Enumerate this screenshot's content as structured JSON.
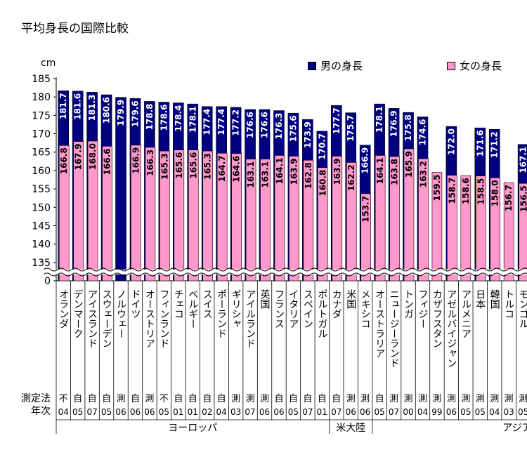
{
  "chart_data": {
    "type": "bar",
    "title": "平均身長の国際比較",
    "ylabel": "cm",
    "ylim": [
      130,
      185
    ],
    "yticks": [
      135,
      140,
      145,
      150,
      155,
      160,
      165,
      170,
      175,
      180,
      185
    ],
    "axis_break": true,
    "y_zero_label": "0",
    "legend_position": "top-right",
    "method_label": "測定法",
    "year_label": "年次",
    "categories": [
      "オランダ",
      "デンマーク",
      "アイスランド",
      "スウェーデン",
      "ノルウェー",
      "ドイツ",
      "オーストリア",
      "フィンランド",
      "チェコ",
      "ベルギー",
      "スイス",
      "ポーランド",
      "ギリシャ",
      "アイルランド",
      "英国",
      "フランス",
      "イタリア",
      "スペイン",
      "ポルトガル",
      "カナダ",
      "米国",
      "メキシコ",
      "オーストラリア",
      "ニュージーランド",
      "トンガ",
      "フィジー",
      "カザフスタン",
      "アゼルバイジャン",
      "アルメニア",
      "日本",
      "韓国",
      "トルコ",
      "モンゴル"
    ],
    "methods": [
      "不",
      "自",
      "自",
      "自",
      "測",
      "自",
      "測",
      "不",
      "自",
      "自",
      "自",
      "自",
      "測",
      "測",
      "測",
      "自",
      "自",
      "自",
      "自",
      "自",
      "測",
      "測",
      "自",
      "測",
      "測",
      "測",
      "測",
      "測",
      "測",
      "測",
      "測",
      "測",
      "測"
    ],
    "years": [
      "04",
      "05",
      "07",
      "05",
      "06",
      "06",
      "06",
      "05",
      "01",
      "01",
      "02",
      "04",
      "03",
      "07",
      "06",
      "06",
      "05",
      "07",
      "01",
      "07",
      "06",
      "06",
      "05",
      "07",
      "00",
      "04",
      "99",
      "06",
      "05",
      "05",
      "04",
      "03",
      "05"
    ],
    "series": [
      {
        "name": "男の身長",
        "color": "#000080",
        "values": [
          181.7,
          181.6,
          181.3,
          180.6,
          179.9,
          179.6,
          178.8,
          178.6,
          178.4,
          178.1,
          177.4,
          177.4,
          177.2,
          176.6,
          176.6,
          176.3,
          175.6,
          173.9,
          170.7,
          177.7,
          175.7,
          166.9,
          178.1,
          176.9,
          175.8,
          174.6,
          null,
          172.0,
          null,
          171.6,
          171.2,
          null,
          167.1
        ]
      },
      {
        "name": "女の身長",
        "color": "#ff99cc",
        "values": [
          166.8,
          167.9,
          168.0,
          166.6,
          null,
          166.9,
          166.3,
          165.3,
          165.6,
          165.6,
          165.3,
          164.7,
          164.6,
          163.1,
          163.1,
          164.1,
          163.9,
          162.8,
          160.8,
          163.9,
          162.2,
          153.7,
          164.1,
          163.8,
          165.9,
          163.2,
          159.5,
          158.7,
          158.6,
          158.5,
          158.0,
          156.7,
          156.5
        ]
      }
    ],
    "groups": [
      {
        "name": "ヨーロッパ",
        "start": 0,
        "end": 18
      },
      {
        "name": "米大陸",
        "start": 19,
        "end": 21
      },
      {
        "name": "アジア",
        "start": 22,
        "end": 32
      }
    ]
  }
}
